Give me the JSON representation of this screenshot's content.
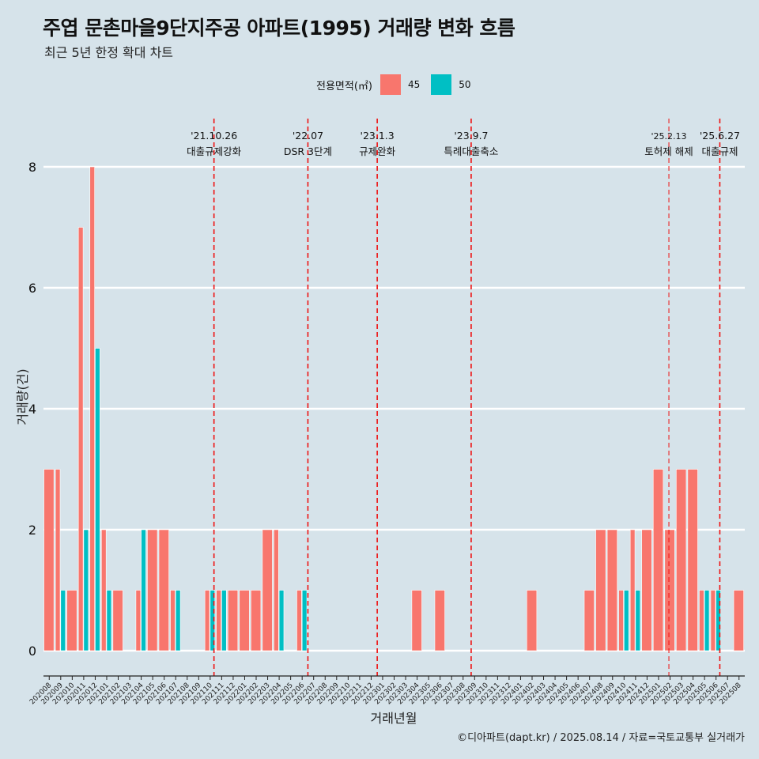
{
  "title": "주엽 문촌마을9단지주공 아파트(1995) 거래량 변화 흐름",
  "subtitle": "최근 5년 한정 확대 차트",
  "caption": "©디아파트(dapt.kr) / 2025.08.14 / 자료=국토교통부 실거래가",
  "colors": {
    "background": "#d6e3ea",
    "s45": "#f8766d",
    "s50": "#00bfc4",
    "event_line": "#ee1111",
    "grid": "#ffffff"
  },
  "chart_data": {
    "type": "bar",
    "xlabel": "거래년월",
    "ylabel": "거래량(건)",
    "ylim": [
      0,
      8
    ],
    "yticks": [
      0,
      2,
      4,
      6,
      8
    ],
    "grid": true,
    "legend": {
      "title": "전용면적(㎡)",
      "position": "top"
    },
    "categories": [
      "202008",
      "202009",
      "202010",
      "202011",
      "202012",
      "202101",
      "202102",
      "202103",
      "202104",
      "202105",
      "202106",
      "202107",
      "202108",
      "202109",
      "202110",
      "202111",
      "202112",
      "202201",
      "202202",
      "202203",
      "202204",
      "202205",
      "202206",
      "202207",
      "202208",
      "202209",
      "202210",
      "202211",
      "202212",
      "202301",
      "202302",
      "202303",
      "202304",
      "202305",
      "202306",
      "202307",
      "202308",
      "202309",
      "202310",
      "202311",
      "202312",
      "202401",
      "202402",
      "202403",
      "202404",
      "202405",
      "202406",
      "202407",
      "202408",
      "202409",
      "202410",
      "202411",
      "202412",
      "202501",
      "202502",
      "202503",
      "202504",
      "202505",
      "202506",
      "202507",
      "202508"
    ],
    "series": [
      {
        "name": "45",
        "values": [
          3,
          3,
          1,
          7,
          8,
          2,
          1,
          0,
          1,
          2,
          2,
          1,
          0,
          0,
          1,
          1,
          1,
          1,
          1,
          2,
          2,
          0,
          1,
          0,
          0,
          0,
          0,
          0,
          0,
          0,
          0,
          0,
          1,
          0,
          1,
          0,
          0,
          0,
          0,
          0,
          0,
          0,
          1,
          0,
          0,
          0,
          0,
          1,
          2,
          2,
          1,
          2,
          2,
          3,
          2,
          3,
          3,
          1,
          1,
          0,
          1
        ]
      },
      {
        "name": "50",
        "values": [
          0,
          1,
          0,
          2,
          5,
          1,
          0,
          0,
          2,
          0,
          0,
          1,
          0,
          0,
          1,
          1,
          0,
          0,
          0,
          0,
          1,
          0,
          1,
          0,
          0,
          0,
          0,
          0,
          0,
          0,
          0,
          0,
          0,
          0,
          0,
          0,
          0,
          0,
          0,
          0,
          0,
          0,
          0,
          0,
          0,
          0,
          0,
          0,
          0,
          0,
          1,
          1,
          0,
          0,
          0,
          0,
          0,
          1,
          1,
          0,
          0
        ]
      }
    ],
    "annotations": [
      {
        "date": "'21.10.26",
        "label": "대출규제강화",
        "month_index": 14.83
      },
      {
        "date": "'22.07",
        "label": "DSR 3단계",
        "month_index": 23.0
      },
      {
        "date": "'23.1.3",
        "label": "규제완화",
        "month_index": 29.03
      },
      {
        "date": "'23.9.7",
        "label": "특례대출축소",
        "month_index": 37.2
      },
      {
        "date": "'25.2.13",
        "label": "토허제 해제",
        "month_index": 54.4
      },
      {
        "date": "'25.6.27",
        "label": "대출규제",
        "month_index": 58.83
      }
    ]
  }
}
